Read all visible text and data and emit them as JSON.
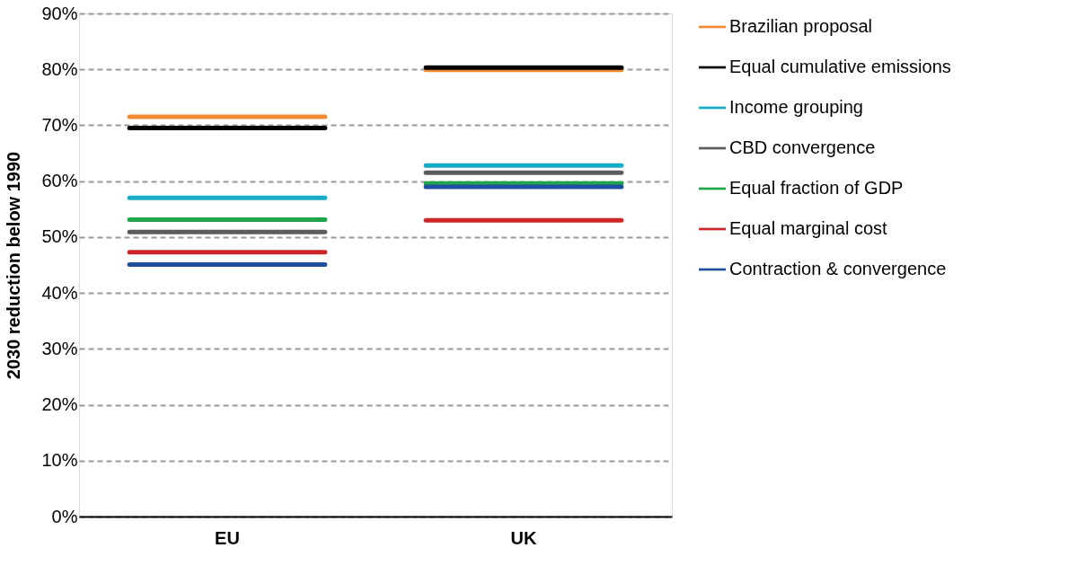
{
  "chart_data": {
    "type": "bar",
    "ylabel": "2030 reduction below 1990",
    "categories": [
      "EU",
      "UK"
    ],
    "series": [
      {
        "name": "Brazilian proposal",
        "color": "#f08a33",
        "base": [
          71.5,
          79.9
        ],
        "values": [
          0,
          0
        ]
      },
      {
        "name": "Equal cumulative emissions",
        "color": "#000000",
        "base": [
          69.5,
          80.3
        ],
        "values": [
          0,
          0
        ]
      },
      {
        "name": "Income grouping",
        "color": "#16abc6",
        "base": [
          57.0,
          62.8
        ],
        "values": [
          0,
          0
        ]
      },
      {
        "name": "CBD convergence",
        "color": "#5a5c5e",
        "base": [
          50.9,
          61.5
        ],
        "values": [
          0,
          0
        ]
      },
      {
        "name": "Equal fraction of GDP",
        "color": "#1fa64a",
        "base": [
          53.1,
          59.6
        ],
        "values": [
          0,
          0
        ]
      },
      {
        "name": "Equal marginal cost",
        "color": "#cc2629",
        "base": [
          47.3,
          53.0
        ],
        "values": [
          0,
          0
        ]
      },
      {
        "name": "Contraction & convergence",
        "color": "#1f4f9e",
        "base": [
          45.1,
          59.0
        ],
        "values": [
          0,
          0
        ]
      }
    ],
    "ylim": [
      0,
      90
    ],
    "yticks": [
      {
        "value": 0,
        "label": "0%"
      },
      {
        "value": 10,
        "label": "10%"
      },
      {
        "value": 20,
        "label": "20%"
      },
      {
        "value": 30,
        "label": "30%"
      },
      {
        "value": 40,
        "label": "40%"
      },
      {
        "value": 50,
        "label": "50%"
      },
      {
        "value": 60,
        "label": "60%"
      },
      {
        "value": 70,
        "label": "70%"
      },
      {
        "value": 80,
        "label": "80%"
      },
      {
        "value": 90,
        "label": "90%"
      }
    ],
    "grid": "y",
    "legend": "right"
  }
}
